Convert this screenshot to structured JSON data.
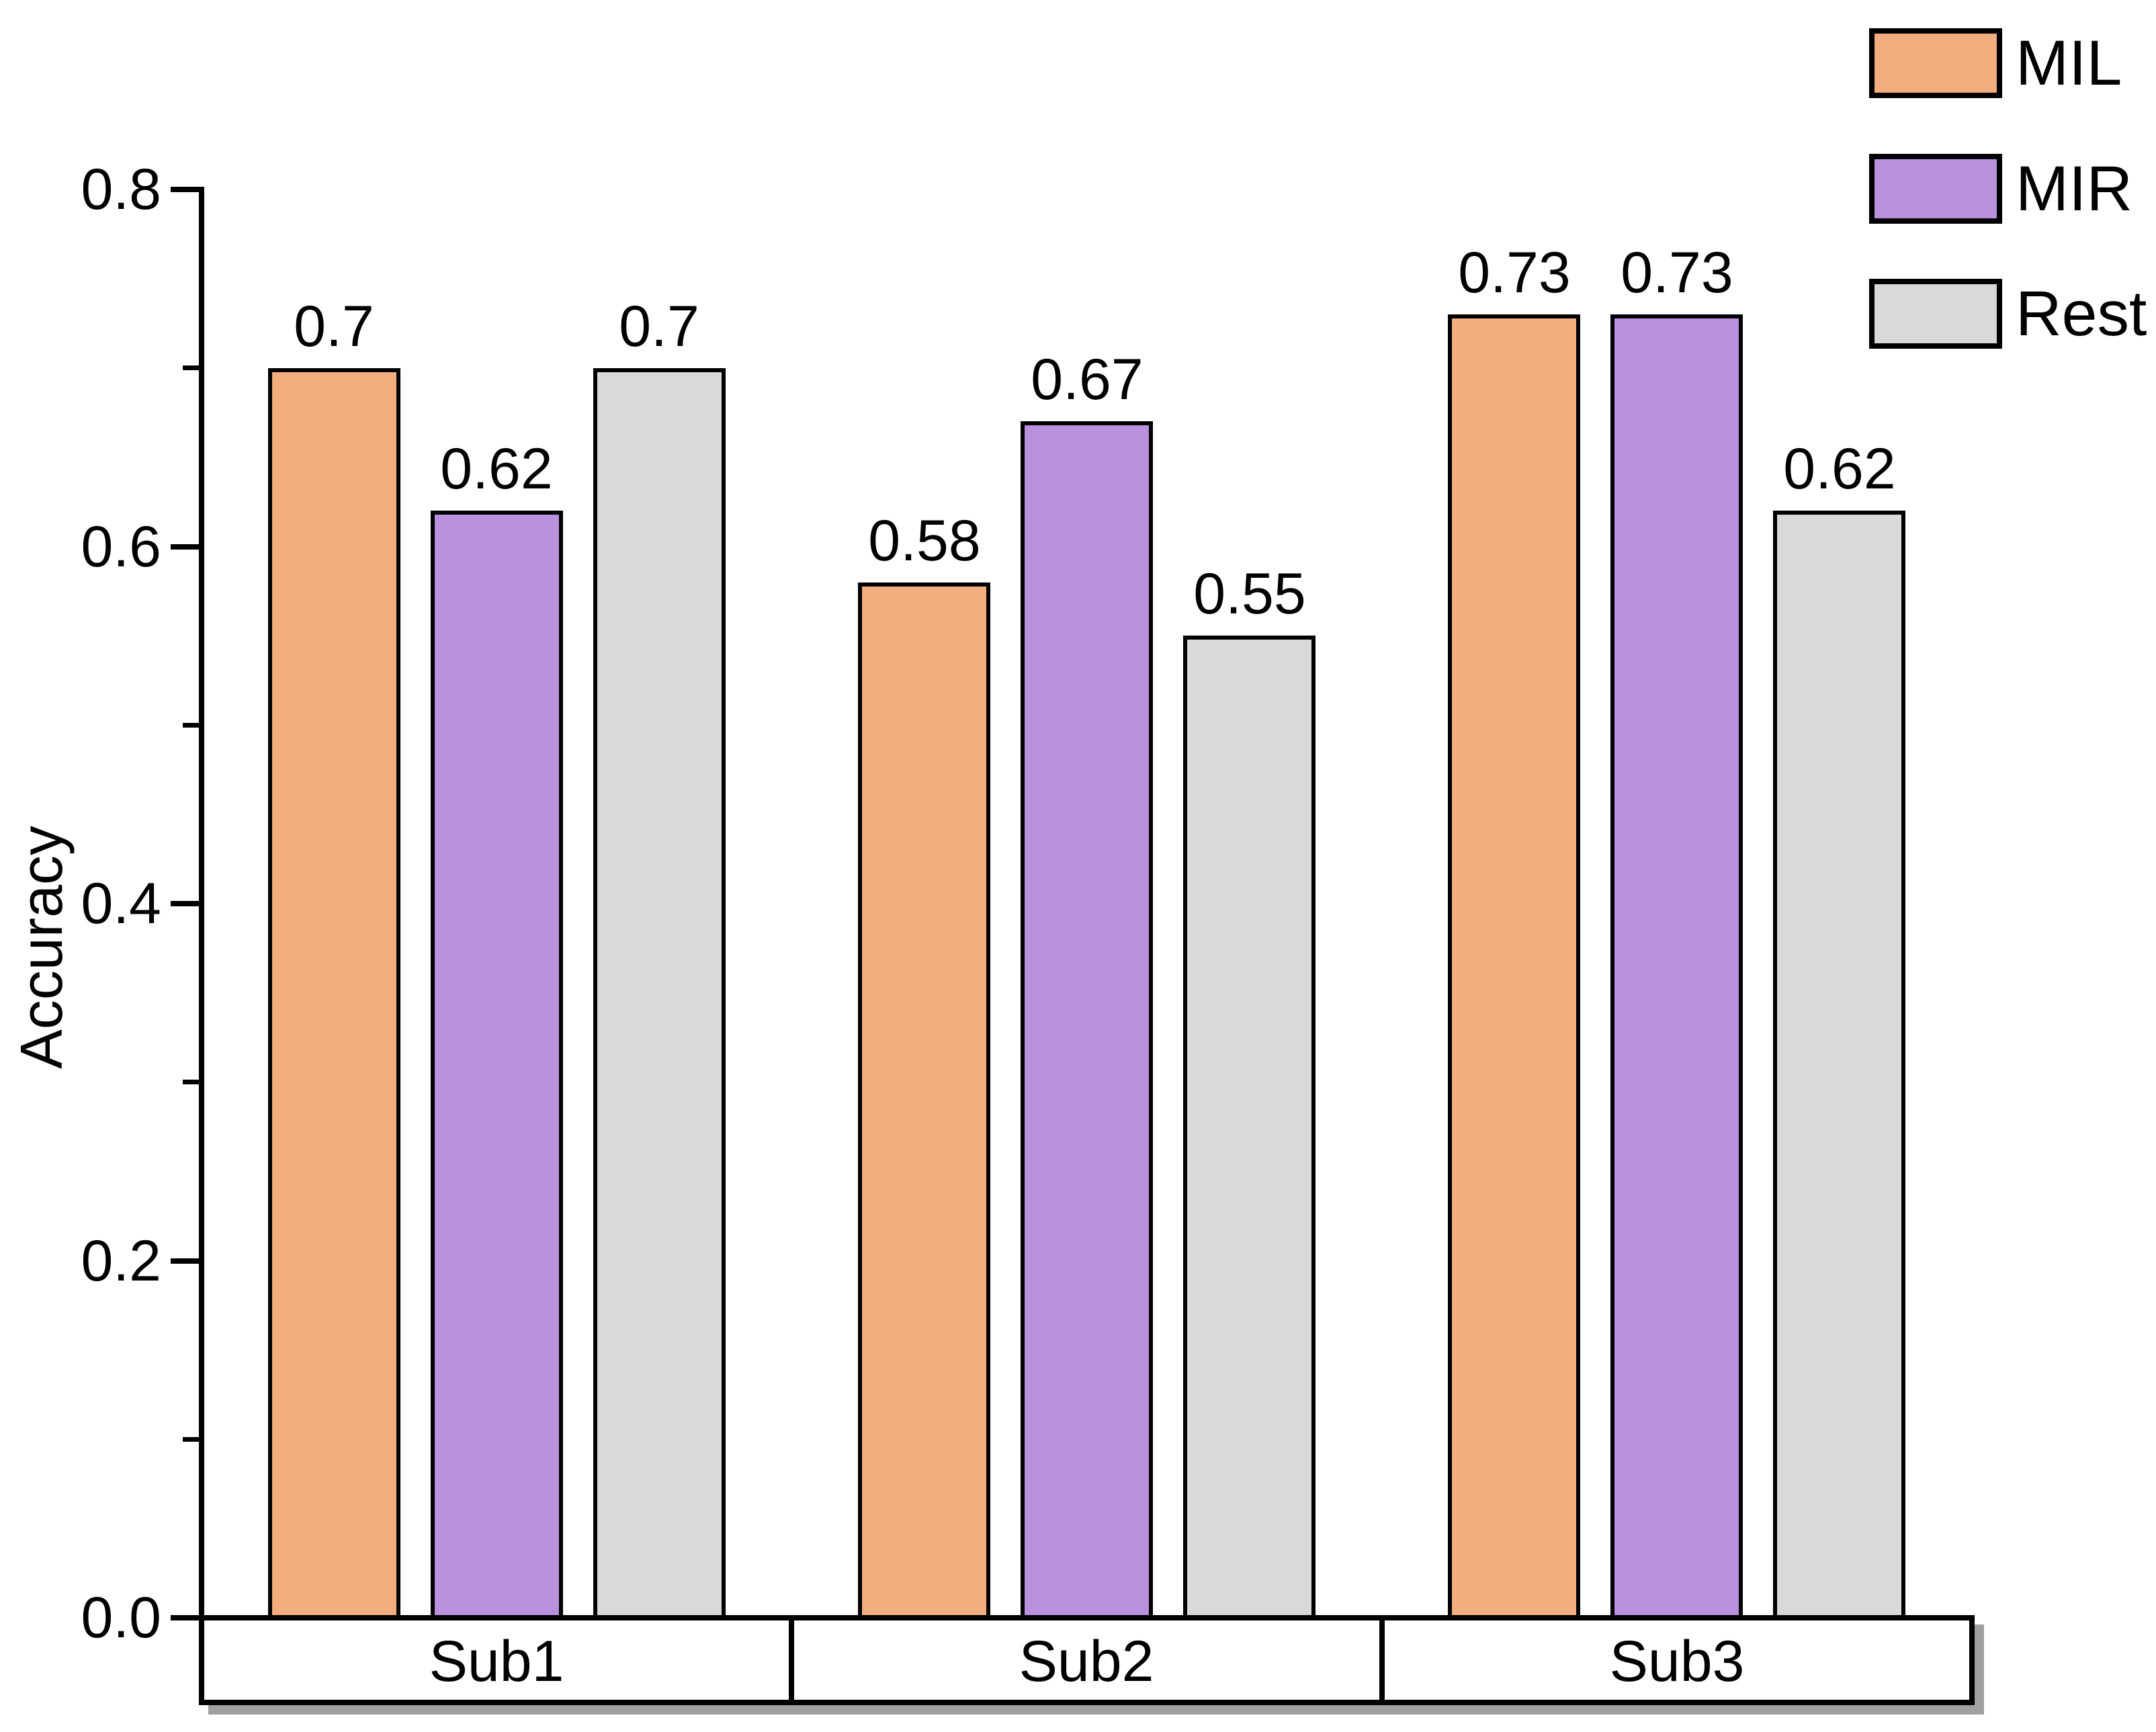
{
  "figure": {
    "background": "#FFFFFF",
    "text_color": "#000000",
    "axis_color": "#000000",
    "box_shadow_color": "#A0A0A0"
  },
  "chart_data": {
    "type": "bar",
    "title": "",
    "xlabel": "",
    "ylabel": "Accuracy",
    "categories": [
      "Sub1",
      "Sub2",
      "Sub3"
    ],
    "series": [
      {
        "name": "MIL",
        "color": "#F2AE7E",
        "values": [
          0.7,
          0.58,
          0.73
        ]
      },
      {
        "name": "MIR",
        "color": "#B991DC",
        "values": [
          0.62,
          0.67,
          0.73
        ]
      },
      {
        "name": "Rest",
        "color": "#D9D9D9",
        "values": [
          0.7,
          0.55,
          0.62
        ]
      }
    ],
    "bar_edge_color": "#000000",
    "ylim": [
      0.0,
      0.8
    ],
    "yticks": [
      {
        "value": 0.0,
        "label": "0.0"
      },
      {
        "value": 0.2,
        "label": "0.2"
      },
      {
        "value": 0.4,
        "label": "0.4"
      },
      {
        "value": 0.6,
        "label": "0.6"
      },
      {
        "value": 0.8,
        "label": "0.8"
      }
    ],
    "minor_yticks": [
      0.1,
      0.3,
      0.5,
      0.7
    ],
    "grid": false,
    "legend": {
      "position": "top-right",
      "entries": [
        "MIL",
        "MIR",
        "Rest"
      ]
    }
  }
}
